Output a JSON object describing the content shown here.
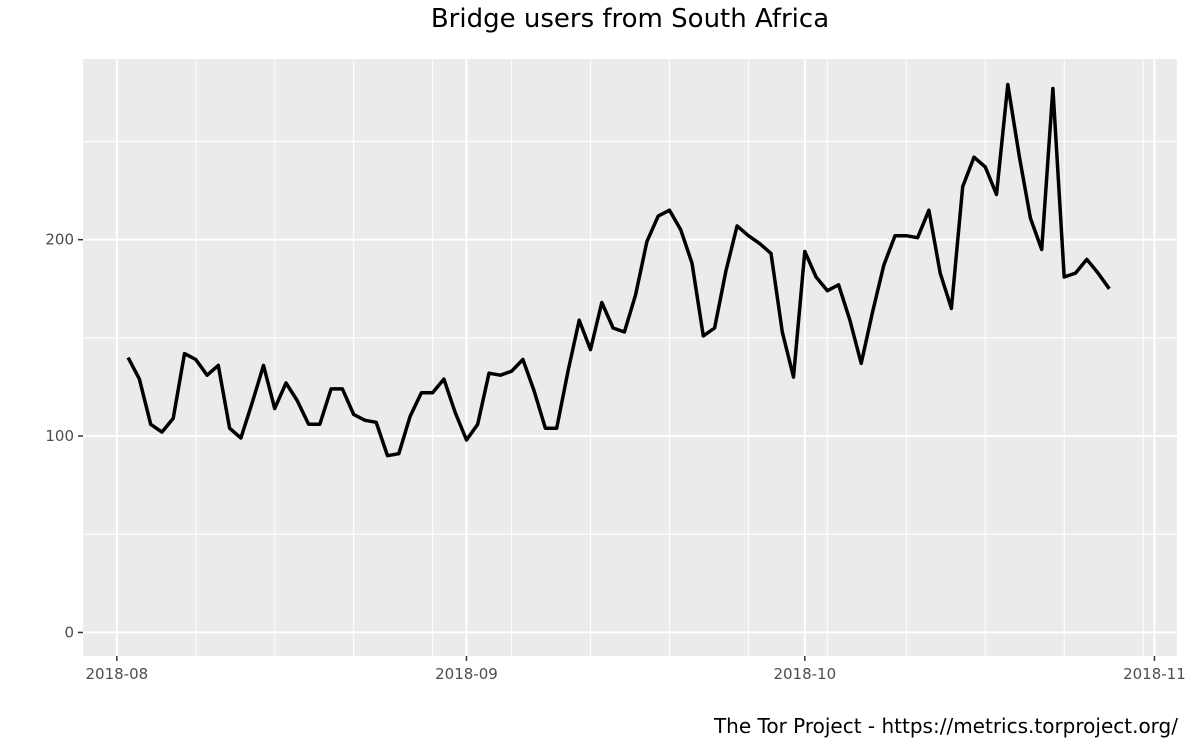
{
  "chart_data": {
    "type": "line",
    "title": "Bridge users from South Africa",
    "xlabel": "",
    "ylabel": "",
    "caption": "The Tor Project - https://metrics.torproject.org/",
    "xlim": [
      "2018-07-29",
      "2018-11-03"
    ],
    "ylim": [
      -12,
      292
    ],
    "grid": true,
    "x_ticks": [
      "2018-08-01",
      "2018-09-01",
      "2018-10-01",
      "2018-11-01"
    ],
    "x_tick_labels": [
      "2018-08",
      "2018-09",
      "2018-10",
      "2018-11"
    ],
    "y_ticks": [
      0,
      100,
      200
    ],
    "y_tick_labels": [
      "0",
      "100",
      "200"
    ],
    "colors": {
      "panel": "#ebebeb",
      "grid": "#ffffff",
      "line": "#000000",
      "tick_text": "#4d4d4d"
    },
    "series": [
      {
        "start_date": "2018-08-02",
        "values": [
          140,
          129,
          106,
          102,
          109,
          142,
          139,
          131,
          136,
          104,
          99,
          117,
          136,
          114,
          127,
          118,
          106,
          106,
          124,
          124,
          111,
          108,
          107,
          90,
          91,
          110,
          122,
          122,
          129,
          112,
          98,
          106,
          132,
          131,
          133,
          139,
          123,
          104,
          104,
          133,
          159,
          144,
          168,
          155,
          153,
          172,
          199,
          212,
          215,
          205,
          188,
          151,
          155,
          184,
          207,
          202,
          198,
          193,
          153,
          130,
          194,
          181,
          174,
          177,
          159,
          137,
          163,
          187,
          202,
          202,
          201,
          215,
          183,
          165,
          227,
          242,
          237,
          223,
          279,
          243,
          211,
          195,
          277,
          181,
          183,
          190,
          183,
          175
        ]
      }
    ]
  }
}
